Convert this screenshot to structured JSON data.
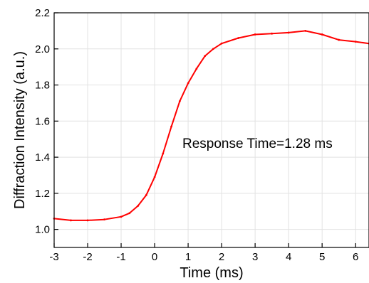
{
  "chart_data": {
    "type": "line",
    "xlabel": "Time (ms)",
    "ylabel": "Diffraction Intensity (a.u.)",
    "xlim": [
      -3,
      6.4
    ],
    "ylim": [
      0.9,
      2.2
    ],
    "xticks": [
      "-3",
      "-2",
      "-1",
      "0",
      "1",
      "2",
      "3",
      "4",
      "5",
      "6"
    ],
    "yticks": [
      "1.0",
      "1.2",
      "1.4",
      "1.6",
      "1.8",
      "2.0",
      "2.2"
    ],
    "grid": true,
    "annotation": "Response Time=1.28 ms",
    "series": [
      {
        "color": "#ff0000",
        "x": [
          -3.0,
          -2.5,
          -2.0,
          -1.5,
          -1.0,
          -0.75,
          -0.5,
          -0.25,
          0.0,
          0.25,
          0.5,
          0.75,
          1.0,
          1.25,
          1.5,
          1.75,
          2.0,
          2.5,
          3.0,
          3.5,
          4.0,
          4.5,
          5.0,
          5.5,
          6.0,
          6.4
        ],
        "y": [
          1.06,
          1.05,
          1.05,
          1.055,
          1.07,
          1.09,
          1.13,
          1.19,
          1.29,
          1.42,
          1.57,
          1.71,
          1.81,
          1.89,
          1.96,
          2.0,
          2.03,
          2.06,
          2.08,
          2.085,
          2.09,
          2.1,
          2.08,
          2.05,
          2.04,
          2.03
        ]
      }
    ]
  }
}
